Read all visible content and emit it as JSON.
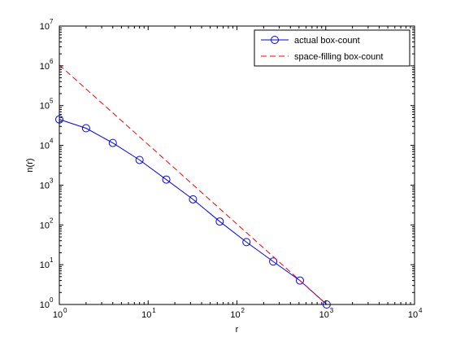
{
  "chart_data": {
    "type": "line",
    "xscale": "log",
    "yscale": "log",
    "xlim": [
      1,
      10000
    ],
    "ylim": [
      1,
      10000000
    ],
    "xlabel": "r",
    "ylabel": "n(r)",
    "grid": false,
    "legend_position": "top-right",
    "x_ticks": [
      {
        "value": 1,
        "base": "10",
        "exp": "0"
      },
      {
        "value": 10,
        "base": "10",
        "exp": "1"
      },
      {
        "value": 100,
        "base": "10",
        "exp": "2"
      },
      {
        "value": 1000,
        "base": "10",
        "exp": "3"
      },
      {
        "value": 10000,
        "base": "10",
        "exp": "4"
      }
    ],
    "y_ticks": [
      {
        "value": 1,
        "base": "10",
        "exp": "0"
      },
      {
        "value": 10,
        "base": "10",
        "exp": "1"
      },
      {
        "value": 100,
        "base": "10",
        "exp": "2"
      },
      {
        "value": 1000,
        "base": "10",
        "exp": "3"
      },
      {
        "value": 10000,
        "base": "10",
        "exp": "4"
      },
      {
        "value": 100000,
        "base": "10",
        "exp": "5"
      },
      {
        "value": 1000000,
        "base": "10",
        "exp": "6"
      },
      {
        "value": 10000000,
        "base": "10",
        "exp": "7"
      }
    ],
    "series": [
      {
        "name": "actual box-count",
        "color": "#0000ff",
        "line_style": "solid",
        "marker": "circle",
        "x": [
          1,
          2,
          4,
          8,
          16,
          32,
          64,
          128,
          256,
          512,
          1024
        ],
        "y": [
          45000,
          27000,
          11500,
          4300,
          1380,
          440,
          122,
          37,
          12,
          4,
          1
        ]
      },
      {
        "name": "space-filling box-count",
        "color": "#ff0000",
        "line_style": "dashed",
        "marker": "none",
        "x": [
          1,
          2,
          4,
          8,
          16,
          32,
          64,
          128,
          256,
          512,
          1024
        ],
        "y": [
          1048576,
          262144,
          65536,
          16384,
          4096,
          1024,
          256,
          64,
          16,
          4,
          1
        ]
      }
    ]
  }
}
